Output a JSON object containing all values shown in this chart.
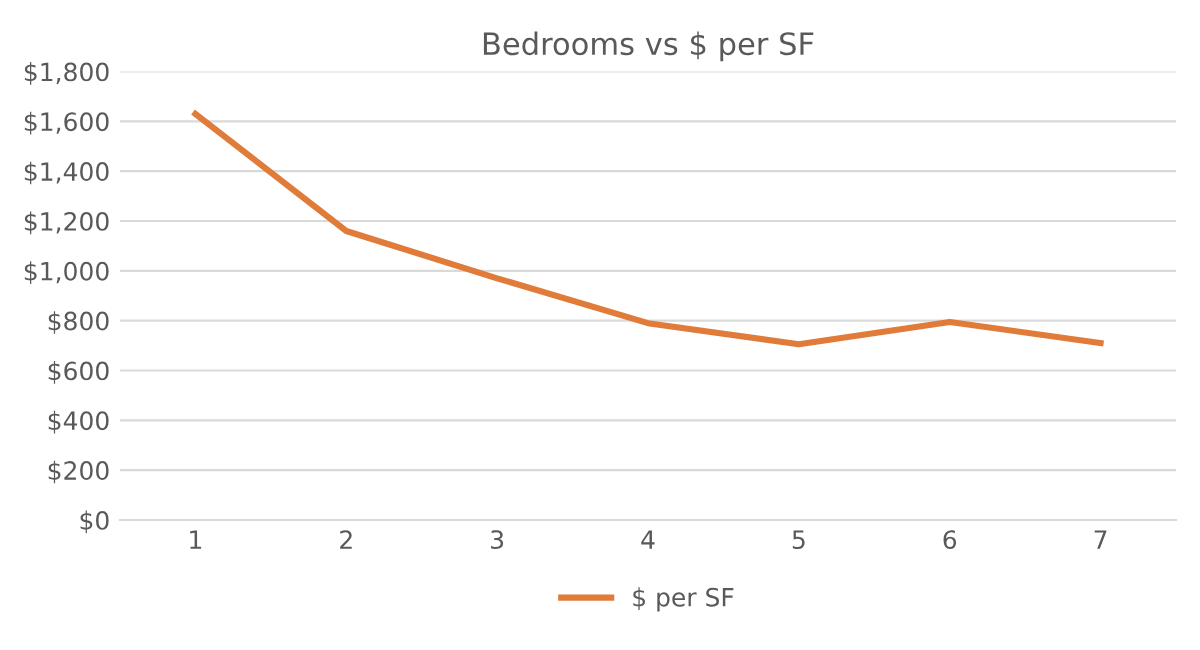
{
  "chart_data": {
    "type": "line",
    "title": "Bedrooms vs $ per SF",
    "categories": [
      "1",
      "2",
      "3",
      "4",
      "5",
      "6",
      "7"
    ],
    "series": [
      {
        "name": "$ per SF",
        "color": "#e07b39",
        "values": [
          1630,
          1160,
          970,
          790,
          705,
          795,
          710
        ]
      }
    ],
    "ylim": [
      0,
      1800
    ],
    "yticks": [
      {
        "value": 0,
        "label": "$0"
      },
      {
        "value": 200,
        "label": "$200"
      },
      {
        "value": 400,
        "label": "$400"
      },
      {
        "value": 600,
        "label": "$600"
      },
      {
        "value": 800,
        "label": "$800"
      },
      {
        "value": 1000,
        "label": "$1,000"
      },
      {
        "value": 1200,
        "label": "$1,200"
      },
      {
        "value": 1400,
        "label": "$1,400"
      },
      {
        "value": 1600,
        "label": "$1,600"
      },
      {
        "value": 1800,
        "label": "$1,800"
      }
    ],
    "grid": "y",
    "legend": "bottom",
    "marker": "none",
    "line_style": "solid"
  }
}
